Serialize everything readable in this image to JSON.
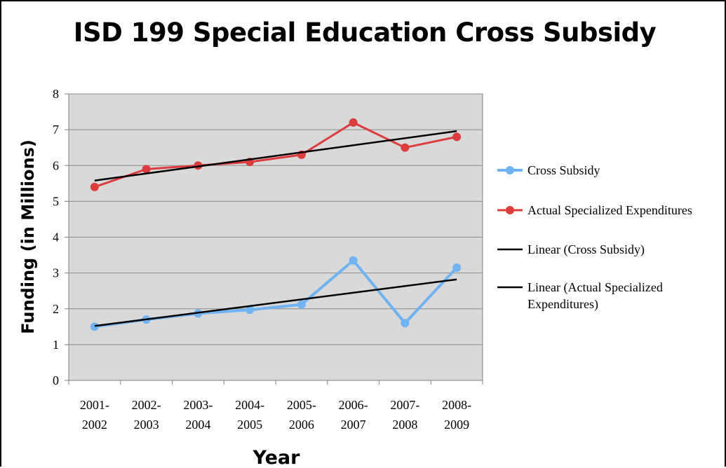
{
  "chart_data": {
    "type": "line",
    "title": "ISD 199 Special Education Cross Subsidy",
    "xlabel": "Year",
    "ylabel": "Funding (in Millions)",
    "ylim": [
      0,
      8
    ],
    "yticks": [
      "0",
      "1",
      "2",
      "3",
      "4",
      "5",
      "6",
      "7",
      "8"
    ],
    "grid": true,
    "legend_position": "right",
    "categories": [
      [
        "2001-",
        "2002"
      ],
      [
        "2002-",
        "2003"
      ],
      [
        "2003-",
        "2004"
      ],
      [
        "2004-",
        "2005"
      ],
      [
        "2005-",
        "2006"
      ],
      [
        "2006-",
        "2007"
      ],
      [
        "2007-",
        "2008"
      ],
      [
        "2008-",
        "2009"
      ]
    ],
    "series": [
      {
        "name": "Cross Subsidy",
        "color": "#6fb3f2",
        "values": [
          1.5,
          1.7,
          1.87,
          1.97,
          2.12,
          3.35,
          1.6,
          3.15
        ]
      },
      {
        "name": "Actual Specialized Expenditures",
        "color": "#dc3c3c",
        "values": [
          5.4,
          5.9,
          6.0,
          6.1,
          6.3,
          7.2,
          6.5,
          6.8
        ]
      }
    ],
    "trendlines": [
      {
        "name": "Linear (Cross Subsidy)",
        "color": "#000000",
        "start": 1.52,
        "end": 2.82
      },
      {
        "name": "Linear (Actual Specialized Expenditures)",
        "label_lines": [
          "Linear (Actual Specialized",
          "Expenditures)"
        ],
        "color": "#000000",
        "start": 5.58,
        "end": 6.96
      }
    ],
    "plot_background": "#d9d9d9"
  }
}
